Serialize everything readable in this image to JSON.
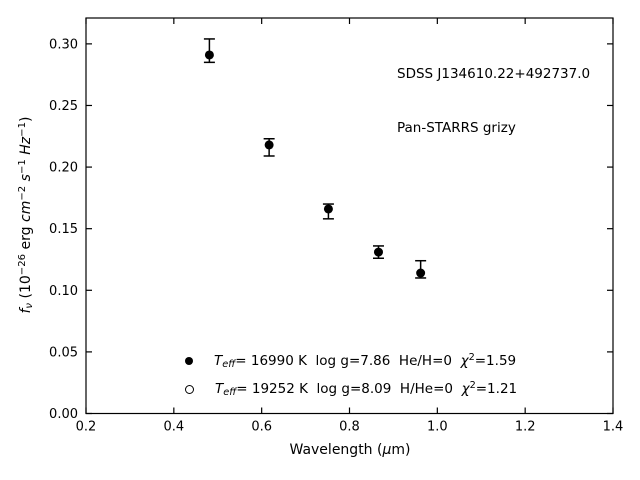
{
  "figure": {
    "background": "#ffffff",
    "foreground": "#000000"
  },
  "chart_data": {
    "type": "scatter",
    "title": "",
    "annotations": [
      "SDSS J134610.22+492737.0",
      "Pan-STARRS grizy"
    ],
    "xlabel_segments": [
      {
        "t": "Wavelength (",
        "s": ""
      },
      {
        "t": "μ",
        "s": "i"
      },
      {
        "t": "m)",
        "s": ""
      }
    ],
    "ylabel_segments": [
      {
        "t": "f",
        "s": "i"
      },
      {
        "t": "ν",
        "s": "sub-i"
      },
      {
        "t": " (10",
        "s": ""
      },
      {
        "t": "−26",
        "s": "sup"
      },
      {
        "t": " erg ",
        "s": ""
      },
      {
        "t": "cm",
        "s": "i"
      },
      {
        "t": "−2",
        "s": "sup"
      },
      {
        "t": " ",
        "s": ""
      },
      {
        "t": "s",
        "s": "i"
      },
      {
        "t": "−1",
        "s": "sup"
      },
      {
        "t": " ",
        "s": ""
      },
      {
        "t": "Hz",
        "s": "i"
      },
      {
        "t": "−1",
        "s": "sup"
      },
      {
        "t": ")",
        "s": ""
      }
    ],
    "xlim": [
      0.2,
      1.4
    ],
    "ylim": [
      0,
      0.321
    ],
    "grid": false,
    "tick_direction": "in",
    "x_ticks": {
      "values": [
        0.2,
        0.4,
        0.6,
        0.8,
        1.0,
        1.2,
        1.4
      ],
      "labels": [
        "0.2",
        "0.4",
        "0.6",
        "0.8",
        "1.0",
        "1.2",
        "1.4"
      ]
    },
    "y_ticks": {
      "values": [
        0.0,
        0.05,
        0.1,
        0.15,
        0.2,
        0.25,
        0.3
      ],
      "labels": [
        "0.00",
        "0.05",
        "0.10",
        "0.15",
        "0.20",
        "0.25",
        "0.30"
      ]
    },
    "series": [
      {
        "name": "Pan-STARRS grizy photometry",
        "marker": "filled-circle",
        "color": "#000000",
        "points": [
          {
            "x": 0.481,
            "y": 0.291,
            "err_plus": 0.013,
            "err_minus": 0.006
          },
          {
            "x": 0.617,
            "y": 0.218,
            "err_plus": 0.005,
            "err_minus": 0.009
          },
          {
            "x": 0.752,
            "y": 0.166,
            "err_plus": 0.004,
            "err_minus": 0.008
          },
          {
            "x": 0.866,
            "y": 0.131,
            "err_plus": 0.005,
            "err_minus": 0.005
          },
          {
            "x": 0.962,
            "y": 0.114,
            "err_plus": 0.01,
            "err_minus": 0.004
          }
        ]
      }
    ],
    "legend_position": "lower-left-inside",
    "legend": [
      {
        "marker": "filled-circle",
        "segments": [
          {
            "t": "T",
            "s": "i"
          },
          {
            "t": "eff",
            "s": "sub-i"
          },
          {
            "t": "= 16990 K  log g=7.86  He/H=0  ",
            "s": ""
          },
          {
            "t": "χ",
            "s": "i"
          },
          {
            "t": "2",
            "s": "sup"
          },
          {
            "t": "=1.59",
            "s": ""
          }
        ]
      },
      {
        "marker": "open-circle",
        "segments": [
          {
            "t": "T",
            "s": "i"
          },
          {
            "t": "eff",
            "s": "sub-i"
          },
          {
            "t": "= 19252 K  log g=8.09  H/He=0  ",
            "s": ""
          },
          {
            "t": "χ",
            "s": "i"
          },
          {
            "t": "2",
            "s": "sup"
          },
          {
            "t": "=1.21",
            "s": ""
          }
        ]
      }
    ]
  }
}
